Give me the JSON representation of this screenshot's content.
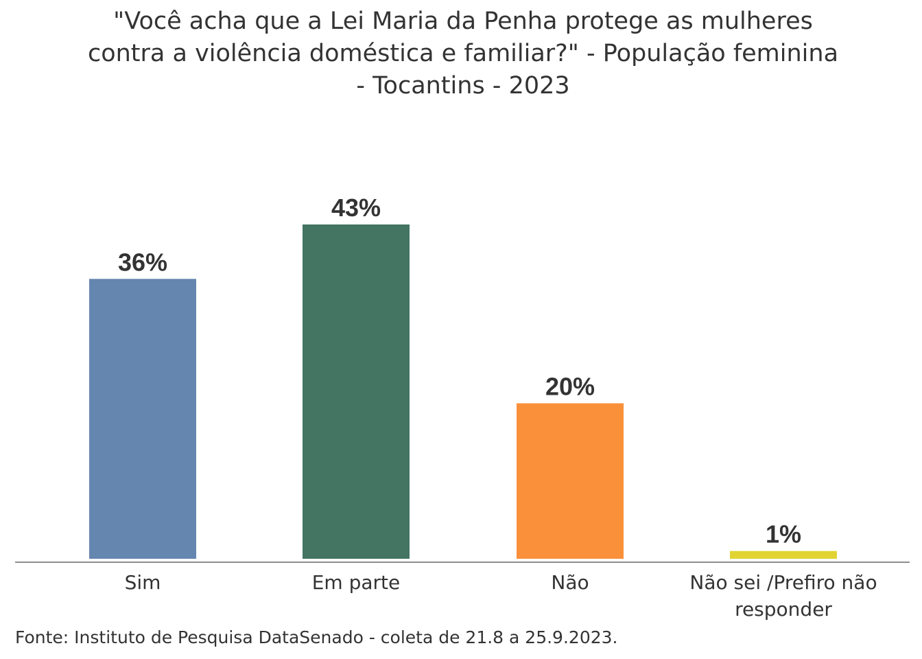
{
  "chart_data": {
    "type": "bar",
    "title": "\"Você acha que a Lei Maria da Penha protege as mulheres contra a violência doméstica e familiar?\" - População feminina - Tocantins - 2023",
    "categories": [
      "Sim",
      "Em parte",
      "Não",
      "Não sei /Prefiro não responder"
    ],
    "values": [
      36,
      43,
      20,
      1
    ],
    "data_labels": [
      "36%",
      "43%",
      "20%",
      "1%"
    ],
    "colors": [
      "#6586AF",
      "#447562",
      "#FA903A",
      "#E1D432"
    ],
    "unit": "%",
    "ylim": [
      0,
      43
    ],
    "grid": false,
    "legend": "none"
  },
  "source": "Fonte: Instituto de Pesquisa DataSenado - coleta de 21.8 a 25.9.2023."
}
